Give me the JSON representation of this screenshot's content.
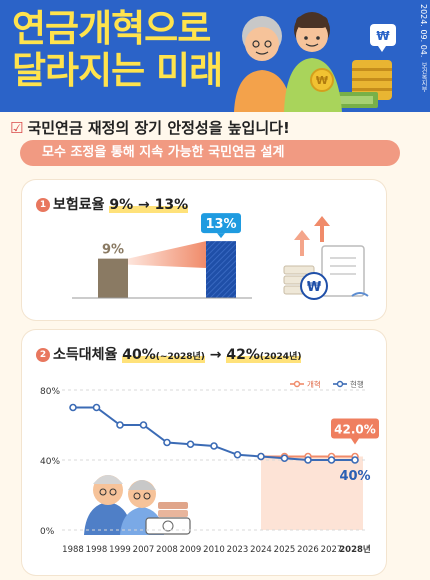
{
  "header": {
    "title_line1": "연금개혁으로",
    "title_line2": "달라지는 미래",
    "date": "2024. 09. 04.",
    "org": "보건복지부",
    "currency_symbol": "₩"
  },
  "section": {
    "heading": "국민연금 재정의 장기 안정성을 높입니다!",
    "subheading": "모수 조정을 통해 지속 가능한 국민연금 설계"
  },
  "card1": {
    "number": "1",
    "title_prefix": "보험료율 ",
    "title_value": "9% → 13%",
    "currency_symbol": "₩"
  },
  "card2": {
    "number": "2",
    "title_prefix": "소득대체율 ",
    "title_value1": "40%",
    "title_note1": "(~2028년)",
    "title_arrow": " → ",
    "title_value2": "42%",
    "title_note2": "(2024년)"
  },
  "chart_data": [
    {
      "type": "bar",
      "categories": [
        "",
        ""
      ],
      "values": [
        9,
        13
      ],
      "labels": [
        "9%",
        "13%"
      ],
      "colors": [
        "#8a7a63",
        "#1f4fa8"
      ],
      "ylim": [
        0,
        16
      ]
    },
    {
      "type": "line",
      "x": [
        "1988",
        "1998",
        "1999",
        "2007",
        "2008",
        "2009",
        "2010",
        "2023",
        "2024",
        "2025",
        "2026",
        "2027",
        "2028년"
      ],
      "series": [
        {
          "name": "개혁",
          "color": "#f08b6a",
          "values": [
            null,
            null,
            null,
            null,
            null,
            null,
            null,
            null,
            42,
            42,
            42,
            42,
            42
          ]
        },
        {
          "name": "현행",
          "color": "#3b6bb5",
          "values": [
            70,
            70,
            60,
            60,
            50,
            49,
            48,
            43,
            42,
            41,
            40,
            40,
            40
          ]
        }
      ],
      "yticks": [
        "80%",
        "40%",
        "0%"
      ],
      "ylim": [
        0,
        80
      ],
      "annotations": {
        "reform_end": "42.0%",
        "current_end": "40%"
      },
      "legend_position": "top-right",
      "grid": true
    }
  ]
}
